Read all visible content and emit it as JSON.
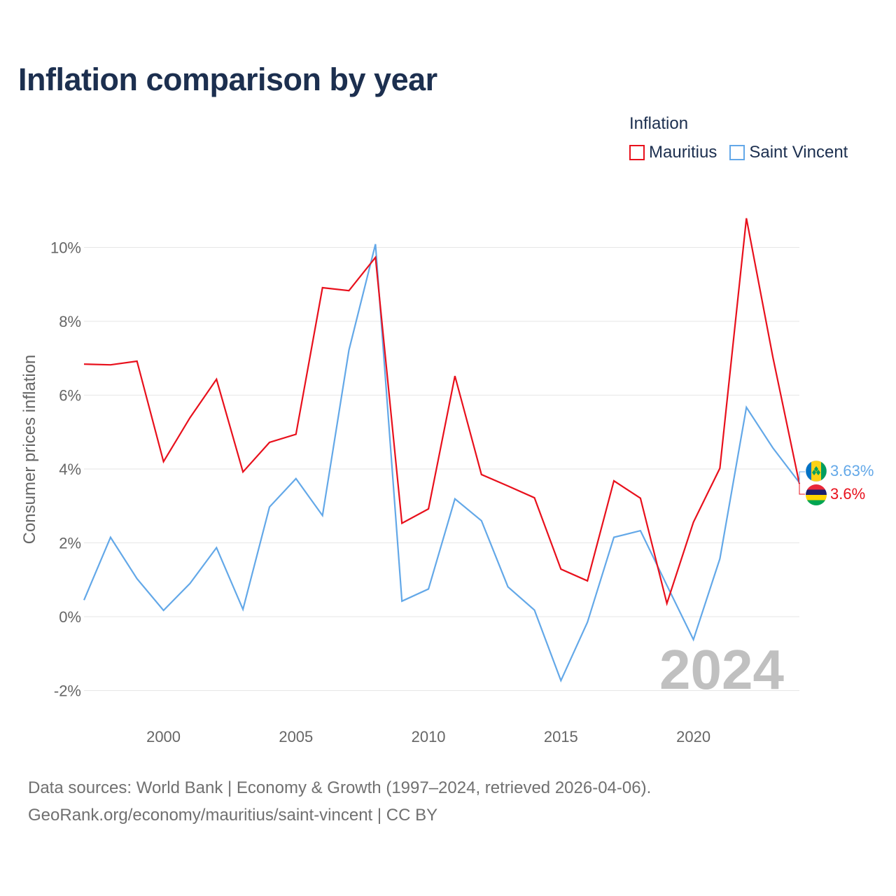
{
  "chart_data": {
    "type": "line",
    "title": "Inflation comparison by year",
    "legend_title": "Inflation",
    "ylabel": "Consumer prices inflation",
    "xlabel": "",
    "xlim": [
      1997,
      2024
    ],
    "ylim": [
      -2.8,
      11.5
    ],
    "y_ticks": [
      -2,
      0,
      2,
      4,
      6,
      8,
      10
    ],
    "y_tick_labels": [
      "-2%",
      "0%",
      "2%",
      "4%",
      "6%",
      "8%",
      "10%"
    ],
    "x_ticks": [
      2000,
      2005,
      2010,
      2015,
      2020
    ],
    "x_tick_labels": [
      "2000",
      "2005",
      "2010",
      "2015",
      "2020"
    ],
    "x": [
      1997,
      1998,
      1999,
      2000,
      2001,
      2002,
      2003,
      2004,
      2005,
      2006,
      2007,
      2008,
      2009,
      2010,
      2011,
      2012,
      2013,
      2014,
      2015,
      2016,
      2017,
      2018,
      2019,
      2020,
      2021,
      2022,
      2023,
      2024
    ],
    "series": [
      {
        "name": "Mauritius",
        "color": "#e8101c",
        "values": [
          6.84,
          6.82,
          6.92,
          4.2,
          5.39,
          6.43,
          3.92,
          4.72,
          4.94,
          8.91,
          8.83,
          9.73,
          2.53,
          2.92,
          6.52,
          3.85,
          3.54,
          3.22,
          1.29,
          0.97,
          3.68,
          3.21,
          0.36,
          2.56,
          4.02,
          10.79,
          7.03,
          3.6
        ],
        "end_label": "3.6%",
        "flag_icon": "mauritius-flag-icon"
      },
      {
        "name": "Saint Vincent",
        "color": "#63a8e8",
        "values": [
          0.45,
          2.15,
          1.03,
          0.17,
          0.9,
          1.87,
          0.2,
          2.97,
          3.74,
          2.74,
          7.22,
          10.09,
          0.42,
          0.75,
          3.19,
          2.6,
          0.81,
          0.18,
          -1.73,
          -0.15,
          2.15,
          2.33,
          0.85,
          -0.62,
          1.57,
          5.67,
          4.57,
          3.63
        ],
        "end_label": "3.63%",
        "flag_icon": "saint-vincent-flag-icon"
      }
    ],
    "year_watermark": "2024",
    "grid": true,
    "legend_position": "top-right"
  },
  "footer": {
    "line1": "Data sources: World Bank | Economy & Growth (1997–2024, retrieved 2026-04-06).",
    "line2": "GeoRank.org/economy/mauritius/saint-vincent | CC BY"
  }
}
